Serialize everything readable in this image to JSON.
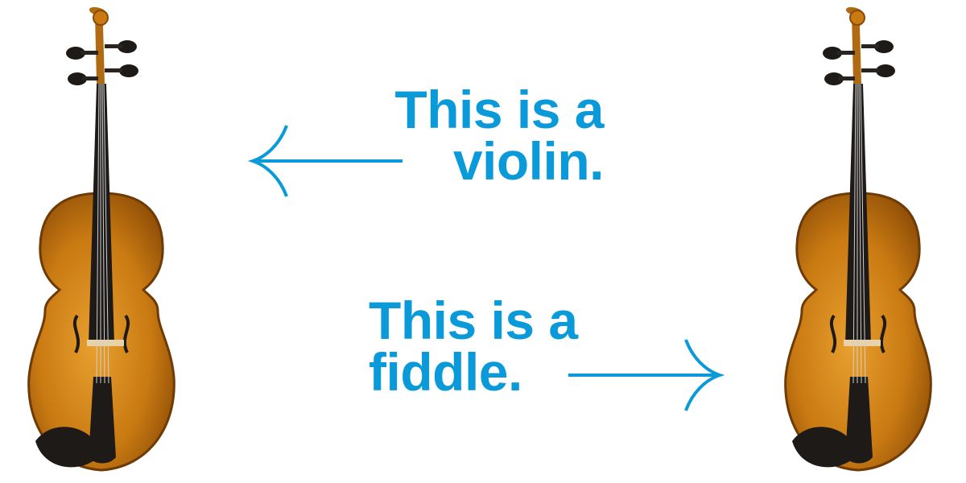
{
  "colors": {
    "accent": "#0a9ad9",
    "wood": "#c97a12",
    "wood_dark": "#8a4a06",
    "ebony": "#1e1a18"
  },
  "captions": {
    "top": {
      "line1": "This is a",
      "line2": "violin."
    },
    "bottom": {
      "line1": "This is a",
      "line2": "fiddle."
    }
  },
  "icons": {
    "left_arrow": "arrow-left-icon",
    "right_arrow": "arrow-right-icon"
  }
}
